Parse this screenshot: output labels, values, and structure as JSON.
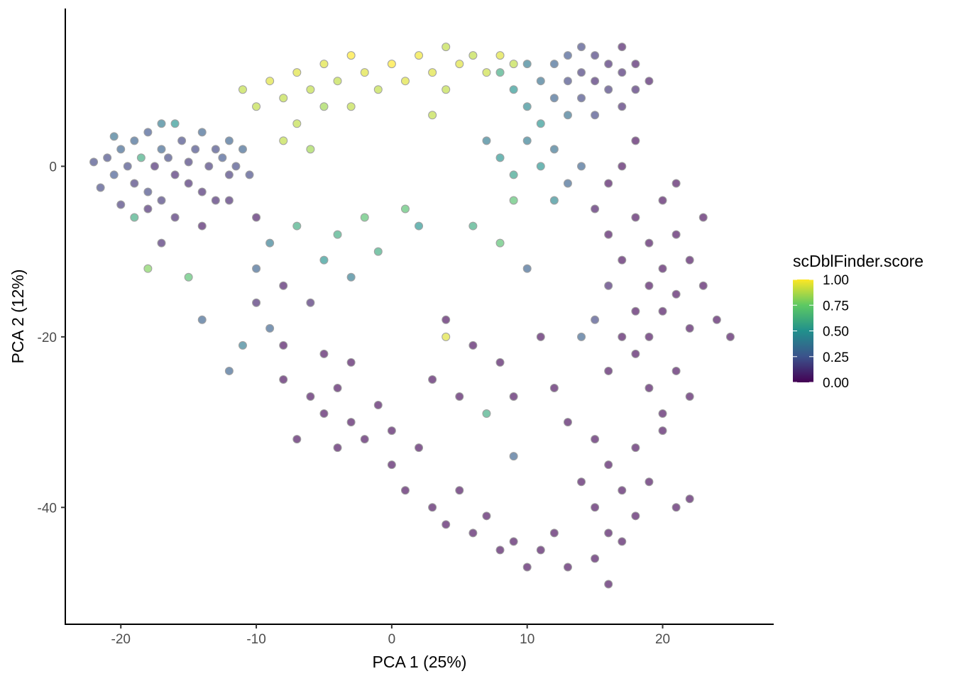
{
  "chart_data": {
    "type": "scatter",
    "xlabel": "PCA 1 (25%)",
    "ylabel": "PCA 2 (12%)",
    "xlim": [
      -24.1,
      28.2
    ],
    "ylim": [
      -53.7,
      18.5
    ],
    "xticks": [
      -20,
      -10,
      0,
      10,
      20
    ],
    "yticks": [
      0,
      -20,
      -40
    ],
    "xtick_labels": [
      "-20",
      "-10",
      "0",
      "10",
      "20"
    ],
    "ytick_labels": [
      "0",
      "-20",
      "-40"
    ],
    "grid": false,
    "legend": {
      "title": "scDblFinder.score",
      "position": "right",
      "type": "colorbar",
      "colormap": "viridis",
      "range": [
        0,
        1
      ],
      "ticks": [
        1.0,
        0.75,
        0.5,
        0.25,
        0.0
      ],
      "tick_labels": [
        "1.00",
        "0.75",
        "0.50",
        "0.25",
        "0.00"
      ]
    },
    "colors": [
      "#440154",
      "#3b528b",
      "#21908c",
      "#5dc963",
      "#fde725"
    ],
    "point_fields": [
      "x",
      "y",
      "score"
    ],
    "points": [
      [
        -21,
        1,
        0.2
      ],
      [
        -20.5,
        -1,
        0.25
      ],
      [
        -20,
        2,
        0.3
      ],
      [
        -19.5,
        0,
        0.2
      ],
      [
        -19,
        3,
        0.3
      ],
      [
        -19,
        -2,
        0.15
      ],
      [
        -18.5,
        1,
        0.6
      ],
      [
        -18,
        -3,
        0.2
      ],
      [
        -18,
        4,
        0.25
      ],
      [
        -17.5,
        0,
        0.1
      ],
      [
        -17,
        2,
        0.3
      ],
      [
        -17,
        -4,
        0.15
      ],
      [
        -16.5,
        1,
        0.2
      ],
      [
        -16,
        -1,
        0.1
      ],
      [
        -16,
        5,
        0.5
      ],
      [
        -15.5,
        3,
        0.2
      ],
      [
        -15,
        -2,
        0.1
      ],
      [
        -15,
        0.5,
        0.15
      ],
      [
        -14.5,
        2,
        0.2
      ],
      [
        -14,
        -3,
        0.1
      ],
      [
        -14,
        4,
        0.3
      ],
      [
        -13.5,
        0,
        0.15
      ],
      [
        -13,
        2,
        0.2
      ],
      [
        -13,
        -4,
        0.1
      ],
      [
        -12.5,
        1,
        0.25
      ],
      [
        -12,
        -1,
        0.15
      ],
      [
        -12,
        3,
        0.3
      ],
      [
        -11.5,
        0,
        0.2
      ],
      [
        -11,
        2,
        0.3
      ],
      [
        -10.5,
        -1,
        0.2
      ],
      [
        -21.5,
        -2.5,
        0.2
      ],
      [
        -20,
        -4.5,
        0.15
      ],
      [
        -18,
        -5,
        0.1
      ],
      [
        -16,
        -6,
        0.1
      ],
      [
        -14,
        -7,
        0.05
      ],
      [
        -17,
        -9,
        0.1
      ],
      [
        -19,
        -6,
        0.6
      ],
      [
        -18,
        -12,
        0.8
      ],
      [
        -15,
        -13,
        0.7
      ],
      [
        -12,
        -4,
        0.1
      ],
      [
        -10,
        -6,
        0.05
      ],
      [
        -20.5,
        3.5,
        0.35
      ],
      [
        -17,
        5,
        0.4
      ],
      [
        -22,
        0.5,
        0.2
      ],
      [
        -11,
        9,
        0.9
      ],
      [
        -10,
        7,
        0.9
      ],
      [
        -9,
        10,
        0.95
      ],
      [
        -8,
        8,
        0.9
      ],
      [
        -7,
        11,
        0.95
      ],
      [
        -6,
        9,
        0.9
      ],
      [
        -5,
        12,
        0.95
      ],
      [
        -4,
        10,
        0.9
      ],
      [
        -3,
        13,
        1
      ],
      [
        -2,
        11,
        0.95
      ],
      [
        -1,
        9,
        0.9
      ],
      [
        0,
        12,
        1
      ],
      [
        1,
        10,
        0.95
      ],
      [
        2,
        13,
        0.98
      ],
      [
        3,
        11,
        0.95
      ],
      [
        4,
        14,
        0.9
      ],
      [
        5,
        12,
        0.95
      ],
      [
        6,
        13,
        0.9
      ],
      [
        7,
        11,
        0.92
      ],
      [
        8,
        13,
        0.95
      ],
      [
        9,
        12,
        0.9
      ],
      [
        -8,
        3,
        0.9
      ],
      [
        -7,
        5,
        0.9
      ],
      [
        -5,
        7,
        0.85
      ],
      [
        -3,
        7,
        0.9
      ],
      [
        3,
        6,
        0.9
      ],
      [
        -6,
        2,
        0.85
      ],
      [
        4,
        9,
        0.9
      ],
      [
        8,
        11,
        0.6
      ],
      [
        9,
        9,
        0.5
      ],
      [
        10,
        12,
        0.4
      ],
      [
        10,
        7,
        0.45
      ],
      [
        11,
        10,
        0.35
      ],
      [
        11,
        5,
        0.5
      ],
      [
        12,
        12,
        0.3
      ],
      [
        12,
        8,
        0.3
      ],
      [
        13,
        13,
        0.25
      ],
      [
        13,
        10,
        0.2
      ],
      [
        13,
        6,
        0.35
      ],
      [
        14,
        14,
        0.2
      ],
      [
        14,
        11,
        0.15
      ],
      [
        14,
        8,
        0.2
      ],
      [
        15,
        13,
        0.15
      ],
      [
        15,
        10,
        0.1
      ],
      [
        15,
        6,
        0.2
      ],
      [
        16,
        12,
        0.1
      ],
      [
        16,
        9,
        0.15
      ],
      [
        17,
        14,
        0.05
      ],
      [
        17,
        11,
        0.1
      ],
      [
        17,
        7,
        0.1
      ],
      [
        18,
        12,
        0.05
      ],
      [
        18,
        9,
        0.1
      ],
      [
        19,
        10,
        0.05
      ],
      [
        7,
        3,
        0.4
      ],
      [
        8,
        1,
        0.5
      ],
      [
        9,
        -1,
        0.55
      ],
      [
        10,
        3,
        0.4
      ],
      [
        11,
        0,
        0.5
      ],
      [
        12,
        2,
        0.35
      ],
      [
        13,
        -2,
        0.3
      ],
      [
        14,
        0,
        0.3
      ],
      [
        12,
        -4,
        0.45
      ],
      [
        9,
        -4,
        0.7
      ],
      [
        15,
        -5,
        0.05
      ],
      [
        16,
        -2,
        0.02
      ],
      [
        17,
        0,
        0.02
      ],
      [
        18,
        3,
        0.02
      ],
      [
        16,
        -8,
        0.02
      ],
      [
        17,
        -11,
        0.02
      ],
      [
        18,
        -6,
        0.02
      ],
      [
        19,
        -9,
        0.02
      ],
      [
        19,
        -14,
        0.02
      ],
      [
        20,
        -12,
        0.02
      ],
      [
        20,
        -17,
        0.02
      ],
      [
        21,
        -8,
        0.02
      ],
      [
        21,
        -15,
        0.02
      ],
      [
        22,
        -11,
        0.02
      ],
      [
        22,
        -19,
        0.02
      ],
      [
        23,
        -14,
        0.02
      ],
      [
        24,
        -18,
        0.02
      ],
      [
        20,
        -4,
        0.02
      ],
      [
        18,
        -17,
        0.02
      ],
      [
        17,
        -20,
        0.02
      ],
      [
        16,
        -24,
        0.02
      ],
      [
        18,
        -22,
        0.02
      ],
      [
        19,
        -26,
        0.02
      ],
      [
        20,
        -29,
        0.02
      ],
      [
        21,
        -24,
        0.02
      ],
      [
        22,
        -27,
        0.02
      ],
      [
        15,
        -18,
        0.2
      ],
      [
        14,
        -20,
        0.3
      ],
      [
        16,
        -14,
        0.1
      ],
      [
        21,
        -2,
        0.02
      ],
      [
        23,
        -6,
        0.02
      ],
      [
        25,
        -20,
        0.02
      ],
      [
        19,
        -20,
        0.02
      ],
      [
        15,
        -32,
        0.02
      ],
      [
        16,
        -35,
        0.02
      ],
      [
        17,
        -38,
        0.02
      ],
      [
        15,
        -40,
        0.02
      ],
      [
        16,
        -43,
        0.02
      ],
      [
        15,
        -46,
        0.02
      ],
      [
        16,
        -49,
        0.02
      ],
      [
        17,
        -44,
        0.02
      ],
      [
        18,
        -41,
        0.02
      ],
      [
        14,
        -37,
        0.02
      ],
      [
        18,
        -33,
        0.02
      ],
      [
        19,
        -37,
        0.02
      ],
      [
        20,
        -31,
        0.02
      ],
      [
        21,
        -40,
        0.02
      ],
      [
        13,
        -30,
        0.02
      ],
      [
        22,
        -39,
        0.02
      ],
      [
        -5,
        -22,
        0.02
      ],
      [
        -4,
        -26,
        0.02
      ],
      [
        -5,
        -29,
        0.02
      ],
      [
        -3,
        -30,
        0.02
      ],
      [
        -2,
        -32,
        0.02
      ],
      [
        -4,
        -33,
        0.02
      ],
      [
        -1,
        -28,
        0.02
      ],
      [
        0,
        -31,
        0.02
      ],
      [
        0,
        -35,
        0.02
      ],
      [
        1,
        -38,
        0.02
      ],
      [
        2,
        -33,
        0.02
      ],
      [
        3,
        -40,
        0.02
      ],
      [
        4,
        -42,
        0.02
      ],
      [
        5,
        -38,
        0.02
      ],
      [
        6,
        -43,
        0.02
      ],
      [
        7,
        -41,
        0.02
      ],
      [
        8,
        -45,
        0.02
      ],
      [
        9,
        -44,
        0.02
      ],
      [
        10,
        -47,
        0.02
      ],
      [
        11,
        -45,
        0.02
      ],
      [
        12,
        -43,
        0.02
      ],
      [
        13,
        -47,
        0.02
      ],
      [
        -6,
        -27,
        0.02
      ],
      [
        -7,
        -32,
        0.02
      ],
      [
        -3,
        -23,
        0.02
      ],
      [
        -8,
        -25,
        0.02
      ],
      [
        -10,
        -12,
        0.3
      ],
      [
        -9,
        -9,
        0.4
      ],
      [
        -8,
        -14,
        0.05
      ],
      [
        -7,
        -7,
        0.6
      ],
      [
        -6,
        -16,
        0.1
      ],
      [
        -5,
        -11,
        0.5
      ],
      [
        -4,
        -8,
        0.6
      ],
      [
        -3,
        -13,
        0.4
      ],
      [
        -2,
        -6,
        0.7
      ],
      [
        -1,
        -10,
        0.6
      ],
      [
        1,
        -5,
        0.7
      ],
      [
        2,
        -7,
        0.5
      ],
      [
        -9,
        -19,
        0.3
      ],
      [
        -11,
        -21,
        0.4
      ],
      [
        -12,
        -24,
        0.3
      ],
      [
        -8,
        -21,
        0.02
      ],
      [
        -10,
        -16,
        0.1
      ],
      [
        4,
        -18,
        0.02
      ],
      [
        6,
        -21,
        0.02
      ],
      [
        8,
        -23,
        0.02
      ],
      [
        9,
        -27,
        0.02
      ],
      [
        7,
        -29,
        0.6
      ],
      [
        3,
        -25,
        0.02
      ],
      [
        5,
        -27,
        0.02
      ],
      [
        11,
        -20,
        0.02
      ],
      [
        12,
        -26,
        0.02
      ],
      [
        8,
        -9,
        0.7
      ],
      [
        6,
        -7,
        0.6
      ],
      [
        10,
        -12,
        0.3
      ],
      [
        4,
        -20,
        0.95
      ],
      [
        -14,
        -18,
        0.3
      ],
      [
        9,
        -34,
        0.3
      ]
    ]
  }
}
